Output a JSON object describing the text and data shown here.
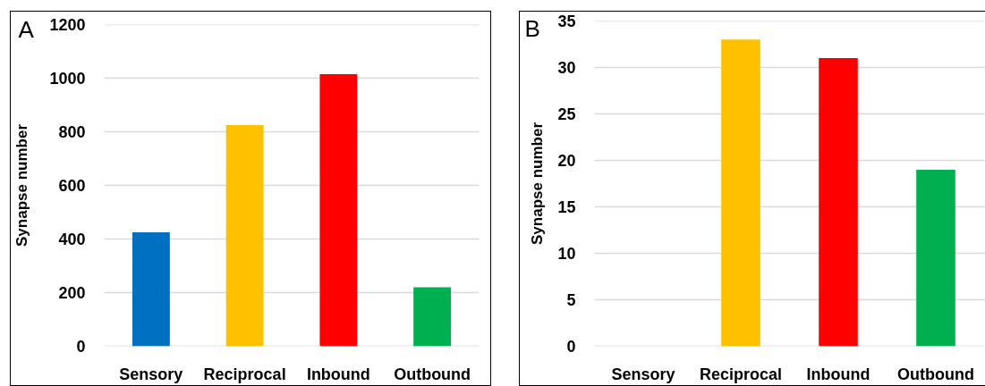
{
  "chart_data": [
    {
      "type": "bar",
      "title": "A",
      "ylabel": "Synapse number",
      "categories": [
        "Sensory",
        "Reciprocal",
        "Inbound",
        "Outbound"
      ],
      "values": [
        425,
        825,
        1015,
        220
      ],
      "colors": [
        "#0070c0",
        "#ffc000",
        "#ff0000",
        "#00b050"
      ],
      "ylim": [
        0,
        1200
      ],
      "yticks": [
        0,
        200,
        400,
        600,
        800,
        1000,
        1200
      ],
      "grid": "y"
    },
    {
      "type": "bar",
      "title": "B",
      "ylabel": "Synapse number",
      "categories": [
        "Sensory",
        "Reciprocal",
        "Inbound",
        "Outbound"
      ],
      "values": [
        0,
        33,
        31,
        19
      ],
      "colors": [
        null,
        "#ffc000",
        "#ff0000",
        "#00b050"
      ],
      "ylim": [
        0,
        35
      ],
      "yticks": [
        0,
        5,
        10,
        15,
        20,
        25,
        30,
        35
      ],
      "grid": "y"
    }
  ]
}
